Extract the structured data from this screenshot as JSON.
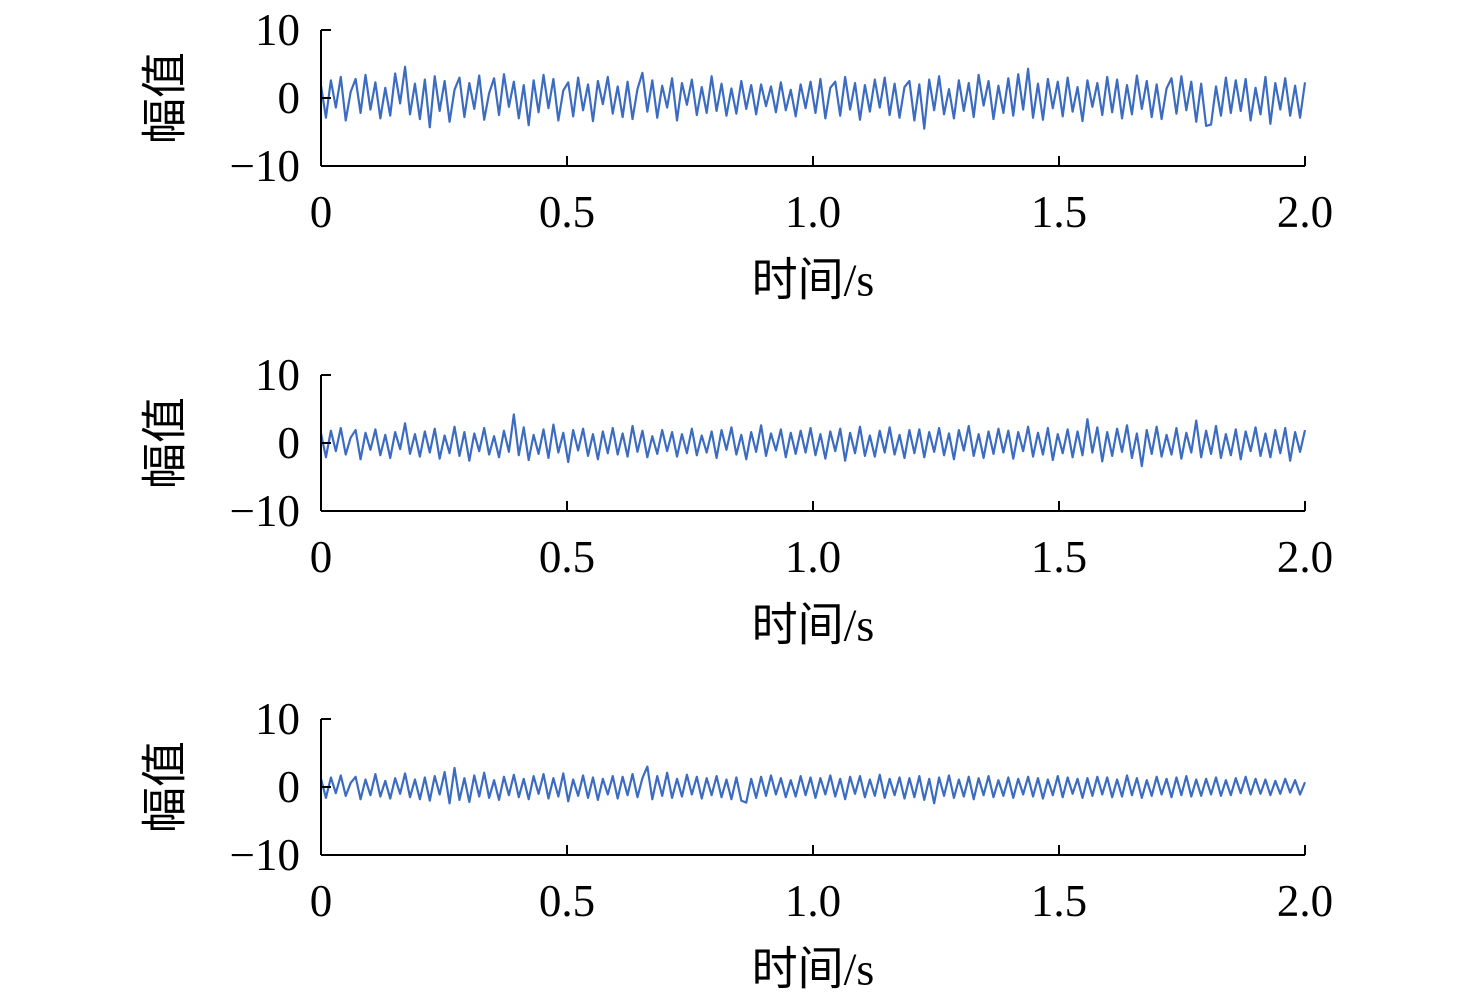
{
  "chart_data": [
    {
      "type": "line",
      "xlabel": "时间/s",
      "ylabel": "幅值",
      "xlim": [
        0,
        2.0
      ],
      "ylim": [
        -10,
        10
      ],
      "xticks": [
        0,
        0.5,
        1.0,
        1.5,
        2.0
      ],
      "xtick_labels": [
        "0",
        "0.5",
        "1.0",
        "1.5",
        "2.0"
      ],
      "yticks": [
        10,
        0,
        -10
      ],
      "ytick_labels": [
        "10",
        "0",
        "−10"
      ],
      "grid": false,
      "series": [
        {
          "color": "#3b6cc1",
          "values": [
            1.8,
            -2.9,
            2.6,
            -1.4,
            3.1,
            -3.3,
            0.9,
            2.8,
            -2.2,
            3.4,
            -1.7,
            2.3,
            -3.0,
            1.5,
            -2.6,
            3.6,
            -0.8,
            4.6,
            -2.4,
            2.1,
            -3.1,
            2.7,
            -4.3,
            3.2,
            -1.9,
            2.5,
            -3.5,
            1.2,
            3.0,
            -2.8,
            2.2,
            -1.6,
            3.3,
            -3.2,
            0.7,
            2.9,
            -2.5,
            3.5,
            -1.3,
            2.4,
            -3.0,
            1.9,
            -4.0,
            2.6,
            -2.1,
            3.4,
            -1.5,
            2.8,
            -3.3,
            1.1,
            2.3,
            -2.7,
            3.0,
            -1.8,
            2.0,
            -3.4,
            2.5,
            -0.9,
            3.1,
            -2.3,
            1.7,
            -2.8,
            2.4,
            -3.1,
            1.3,
            3.7,
            -2.0,
            2.6,
            -2.9,
            1.8,
            -1.4,
            2.9,
            -3.3,
            2.2,
            -1.0,
            2.7,
            -2.5,
            1.6,
            -2.2,
            3.2,
            -1.9,
            2.1,
            -2.6,
            1.4,
            -2.3,
            2.5,
            -1.6,
            1.9,
            -2.4,
            2.0,
            -1.2,
            1.7,
            -2.1,
            2.3,
            -1.8,
            1.2,
            -2.7,
            2.0,
            -1.5,
            2.4,
            -2.2,
            2.8,
            -3.0,
            1.5,
            2.4,
            -2.6,
            3.1,
            -1.7,
            2.2,
            -3.2,
            1.9,
            -2.0,
            2.7,
            -1.4,
            3.0,
            -2.5,
            2.1,
            -2.9,
            1.6,
            2.5,
            -3.3,
            2.0,
            -4.5,
            2.7,
            -1.8,
            3.2,
            -2.4,
            1.3,
            -3.0,
            2.6,
            -1.9,
            2.2,
            -2.8,
            3.4,
            -1.1,
            2.5,
            -3.1,
            1.8,
            -2.2,
            2.9,
            -2.6,
            3.5,
            -1.7,
            4.3,
            -2.9,
            2.1,
            -3.2,
            2.8,
            -1.5,
            2.4,
            -2.7,
            3.0,
            -2.0,
            1.6,
            -3.4,
            2.6,
            -1.3,
            2.2,
            -2.5,
            3.1,
            -2.1,
            2.7,
            -3.0,
            1.9,
            -2.4,
            3.3,
            -1.6,
            2.5,
            -2.8,
            2.0,
            -3.1,
            1.4,
            2.9,
            -2.3,
            3.2,
            -1.8,
            2.4,
            -3.5,
            2.1,
            -4.1,
            -3.9,
            1.7,
            -2.6,
            3.0,
            -2.2,
            2.6,
            -1.9,
            2.8,
            -3.3,
            1.5,
            -2.4,
            3.1,
            -3.8,
            2.2,
            -1.7,
            2.9,
            -2.6,
            1.8,
            -2.9,
            2.3
          ]
        }
      ]
    },
    {
      "type": "line",
      "xlabel": "时间/s",
      "ylabel": "幅值",
      "xlim": [
        0,
        2.0
      ],
      "ylim": [
        -10,
        10
      ],
      "xticks": [
        0,
        0.5,
        1.0,
        1.5,
        2.0
      ],
      "xtick_labels": [
        "0",
        "0.5",
        "1.0",
        "1.5",
        "2.0"
      ],
      "yticks": [
        10,
        0,
        -10
      ],
      "ytick_labels": [
        "10",
        "0",
        "−10"
      ],
      "grid": false,
      "series": [
        {
          "color": "#3b6cc1",
          "values": [
            1.4,
            -2.1,
            1.8,
            -1.2,
            2.2,
            -1.7,
            0.8,
            1.9,
            -2.4,
            1.5,
            -1.0,
            2.0,
            -1.8,
            1.2,
            -2.2,
            1.6,
            -0.9,
            2.9,
            -1.6,
            1.3,
            -2.0,
            1.7,
            -1.4,
            2.1,
            -2.3,
            1.1,
            -1.5,
            2.4,
            -1.9,
            1.6,
            -2.6,
            1.4,
            -1.2,
            2.2,
            -1.7,
            1.0,
            -2.1,
            1.8,
            -1.3,
            4.2,
            -1.8,
            2.3,
            -2.5,
            1.2,
            -1.6,
            2.0,
            -2.2,
            2.7,
            -1.4,
            1.5,
            -2.8,
            1.9,
            -1.1,
            2.1,
            -1.9,
            1.3,
            -2.4,
            1.7,
            -1.5,
            2.2,
            -1.7,
            1.4,
            -2.0,
            2.5,
            -1.3,
            1.8,
            -2.1,
            1.0,
            -1.6,
            1.9,
            -1.2,
            1.6,
            -2.0,
            1.3,
            -1.5,
            2.1,
            -1.8,
            1.1,
            -1.4,
            1.7,
            -2.2,
            1.9,
            -1.0,
            2.3,
            -1.7,
            1.2,
            -2.4,
            1.6,
            -1.3,
            2.6,
            -1.9,
            1.4,
            -1.1,
            2.0,
            -2.1,
            1.5,
            -1.6,
            1.8,
            -1.4,
            2.2,
            -1.8,
            1.3,
            -2.3,
            1.7,
            -1.2,
            2.1,
            -2.6,
            1.5,
            -1.5,
            2.4,
            -1.9,
            1.1,
            -2.0,
            1.8,
            -1.4,
            2.3,
            -1.7,
            1.2,
            -2.2,
            1.9,
            -1.5,
            2.0,
            -2.1,
            1.6,
            -1.3,
            2.2,
            -1.8,
            1.4,
            -2.4,
            1.9,
            -1.1,
            2.5,
            -1.9,
            1.3,
            -2.2,
            1.7,
            -1.6,
            2.1,
            -1.4,
            1.8,
            -2.3,
            1.6,
            -1.2,
            2.4,
            -2.0,
            1.5,
            -1.7,
            2.2,
            -2.5,
            1.3,
            -1.5,
            2.0,
            -2.1,
            1.7,
            -1.8,
            3.5,
            -1.4,
            2.3,
            -2.7,
            1.6,
            -1.9,
            2.1,
            -1.3,
            2.6,
            -2.2,
            1.4,
            -3.4,
            1.9,
            -1.6,
            2.4,
            -2.0,
            1.2,
            -1.7,
            2.2,
            -2.3,
            1.5,
            -1.4,
            3.3,
            -2.1,
            1.8,
            -1.6,
            2.5,
            -2.2,
            1.3,
            -1.8,
            2.0,
            -2.4,
            1.7,
            -1.2,
            2.3,
            -1.9,
            1.4,
            -2.1,
            1.9,
            -1.5,
            2.2,
            -2.6,
            1.6,
            -1.3,
            1.9
          ]
        }
      ]
    },
    {
      "type": "line",
      "xlabel": "时间/s",
      "ylabel": "幅值",
      "xlim": [
        0,
        2.0
      ],
      "ylim": [
        -10,
        10
      ],
      "xticks": [
        0,
        0.5,
        1.0,
        1.5,
        2.0
      ],
      "xtick_labels": [
        "0",
        "0.5",
        "1.0",
        "1.5",
        "2.0"
      ],
      "yticks": [
        10,
        0,
        -10
      ],
      "ytick_labels": [
        "10",
        "0",
        "−10"
      ],
      "grid": false,
      "series": [
        {
          "color": "#3b6cc1",
          "values": [
            1.2,
            -1.6,
            1.4,
            -0.9,
            1.7,
            -1.3,
            0.6,
            1.5,
            -1.8,
            1.1,
            -1.2,
            1.9,
            -1.4,
            0.9,
            -1.7,
            1.3,
            -1.0,
            2.0,
            -1.5,
            1.1,
            -1.8,
            1.4,
            -2.0,
            1.6,
            -1.1,
            2.2,
            -2.4,
            2.8,
            -1.9,
            1.3,
            -2.2,
            1.7,
            -1.4,
            2.1,
            -1.6,
            1.0,
            -1.9,
            1.5,
            -1.2,
            1.8,
            -1.5,
            1.2,
            -1.8,
            1.6,
            -1.0,
            1.9,
            -1.7,
            1.3,
            -1.4,
            2.0,
            -2.1,
            1.1,
            -1.3,
            1.7,
            -1.6,
            1.4,
            -1.9,
            1.2,
            -1.1,
            1.6,
            -1.7,
            1.5,
            -1.2,
            1.9,
            -1.5,
            1.3,
            3.0,
            -1.8,
            1.6,
            -1.3,
            2.1,
            -1.6,
            1.2,
            -1.4,
            1.8,
            -1.1,
            1.5,
            -1.7,
            1.3,
            -1.2,
            1.6,
            -1.5,
            1.1,
            -1.8,
            1.4,
            -2.0,
            -2.3,
            1.2,
            -1.6,
            1.5,
            -1.3,
            1.7,
            -1.1,
            1.3,
            -1.5,
            1.0,
            -1.4,
            1.6,
            -1.2,
            1.4,
            -1.6,
            1.3,
            -1.1,
            1.7,
            -1.4,
            1.2,
            -1.8,
            1.5,
            -1.0,
            1.6,
            -1.5,
            1.1,
            -1.3,
            1.8,
            -1.6,
            1.2,
            -1.2,
            1.4,
            -1.7,
            1.3,
            -1.5,
            1.6,
            -1.9,
            1.2,
            -2.4,
            1.4,
            -1.3,
            1.7,
            -1.6,
            1.1,
            -1.4,
            1.5,
            -1.8,
            1.3,
            -1.2,
            1.6,
            -1.5,
            1.0,
            -1.3,
            1.4,
            -1.6,
            1.2,
            -1.1,
            1.5,
            -1.4,
            1.3,
            -1.7,
            1.1,
            -1.2,
            1.6,
            -1.5,
            1.4,
            -1.0,
            1.2,
            -1.6,
            1.3,
            -1.3,
            1.5,
            -1.1,
            1.4,
            -1.5,
            1.1,
            -1.4,
            1.7,
            -1.2,
            1.3,
            -1.6,
            1.0,
            -1.3,
            1.5,
            -1.1,
            1.2,
            -1.5,
            1.4,
            -1.2,
            1.6,
            -1.4,
            1.1,
            -1.3,
            1.2,
            -1.1,
            1.4,
            -1.3,
            1.0,
            -1.2,
            1.3,
            -0.9,
            1.5,
            -1.1,
            1.2,
            -1.0,
            1.1,
            -1.2,
            0.9,
            -1.0,
            1.2,
            -0.8,
            1.0,
            -1.1,
            0.7
          ]
        }
      ]
    }
  ]
}
